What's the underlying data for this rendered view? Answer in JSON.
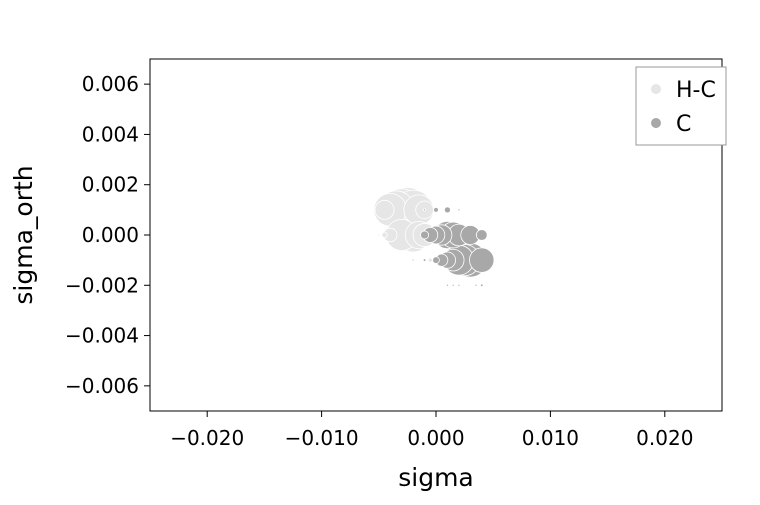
{
  "chart_data": {
    "type": "scatter",
    "xlabel": "sigma",
    "ylabel": "sigma_orth",
    "xlim": [
      -0.025,
      0.025
    ],
    "ylim": [
      -0.007,
      0.007
    ],
    "x_ticks": [
      -0.02,
      -0.01,
      0.0,
      0.01,
      0.02
    ],
    "x_tick_labels": [
      "−0.020",
      "−0.010",
      "0.000",
      "0.010",
      "0.020"
    ],
    "y_ticks": [
      0.006,
      0.004,
      0.002,
      0.0,
      -0.002,
      -0.004,
      -0.006
    ],
    "y_tick_labels": [
      "0.006",
      "0.004",
      "0.002",
      "0.000",
      "−0.002",
      "−0.004",
      "−0.006"
    ],
    "grid": false,
    "legend_position": "top-right",
    "series": [
      {
        "name": "H-C",
        "color": "#e6e6e6",
        "points": [
          {
            "x": -0.0025,
            "y": 0.001,
            "size": 6.6
          },
          {
            "x": -0.003,
            "y": 0.001,
            "size": 6.2
          },
          {
            "x": -0.0035,
            "y": 0.001,
            "size": 5.6
          },
          {
            "x": -0.004,
            "y": 0.001,
            "size": 4.8
          },
          {
            "x": -0.002,
            "y": 0.001,
            "size": 5.8
          },
          {
            "x": -0.0015,
            "y": 0.001,
            "size": 4.4
          },
          {
            "x": -0.001,
            "y": 0.001,
            "size": 2.6
          },
          {
            "x": -0.0045,
            "y": 0.001,
            "size": 2.8
          },
          {
            "x": -0.003,
            "y": 0.0,
            "size": 4.6
          },
          {
            "x": -0.002,
            "y": 0.0,
            "size": 5.0
          },
          {
            "x": -0.0015,
            "y": 0.0,
            "size": 4.0
          },
          {
            "x": -0.001,
            "y": 0.0,
            "size": 3.4
          },
          {
            "x": -0.004,
            "y": 0.0,
            "size": 2.0
          },
          {
            "x": -0.0045,
            "y": 0.0,
            "size": 0.8
          },
          {
            "x": -0.005,
            "y": 0.0,
            "size": 0.3
          },
          {
            "x": -0.002,
            "y": -0.001,
            "size": 0.4
          },
          {
            "x": -0.0005,
            "y": -0.001,
            "size": 0.6
          }
        ]
      },
      {
        "name": "C",
        "color": "#a8a8a8",
        "points": [
          {
            "x": 0.003,
            "y": -0.001,
            "size": 5.0
          },
          {
            "x": 0.0025,
            "y": -0.001,
            "size": 4.6
          },
          {
            "x": 0.002,
            "y": -0.001,
            "size": 4.4
          },
          {
            "x": 0.004,
            "y": -0.001,
            "size": 3.6
          },
          {
            "x": 0.0015,
            "y": -0.001,
            "size": 3.2
          },
          {
            "x": 0.001,
            "y": -0.001,
            "size": 2.4
          },
          {
            "x": 0.0005,
            "y": -0.001,
            "size": 1.8
          },
          {
            "x": 0.0,
            "y": -0.001,
            "size": 1.0
          },
          {
            "x": -0.001,
            "y": -0.001,
            "size": 0.4
          },
          {
            "x": 0.001,
            "y": 0.0,
            "size": 4.0
          },
          {
            "x": 0.0015,
            "y": 0.0,
            "size": 3.8
          },
          {
            "x": 0.0005,
            "y": 0.0,
            "size": 3.0
          },
          {
            "x": 0.0,
            "y": 0.0,
            "size": 2.6
          },
          {
            "x": 0.002,
            "y": 0.0,
            "size": 3.2
          },
          {
            "x": 0.003,
            "y": 0.0,
            "size": 2.8
          },
          {
            "x": -0.0005,
            "y": 0.0,
            "size": 2.2
          },
          {
            "x": 0.004,
            "y": 0.0,
            "size": 1.6
          },
          {
            "x": -0.001,
            "y": 0.0,
            "size": 1.2
          },
          {
            "x": 0.001,
            "y": 0.001,
            "size": 0.9
          },
          {
            "x": 0.0,
            "y": 0.001,
            "size": 0.7
          },
          {
            "x": -0.001,
            "y": 0.001,
            "size": 0.3
          },
          {
            "x": 0.002,
            "y": 0.001,
            "size": 0.3
          },
          {
            "x": 0.001,
            "y": -0.002,
            "size": 0.3
          },
          {
            "x": 0.002,
            "y": -0.002,
            "size": 0.3
          },
          {
            "x": 0.0035,
            "y": -0.002,
            "size": 0.3
          },
          {
            "x": 0.004,
            "y": -0.002,
            "size": 0.4
          },
          {
            "x": 0.0015,
            "y": -0.002,
            "size": 0.3
          }
        ]
      }
    ]
  }
}
